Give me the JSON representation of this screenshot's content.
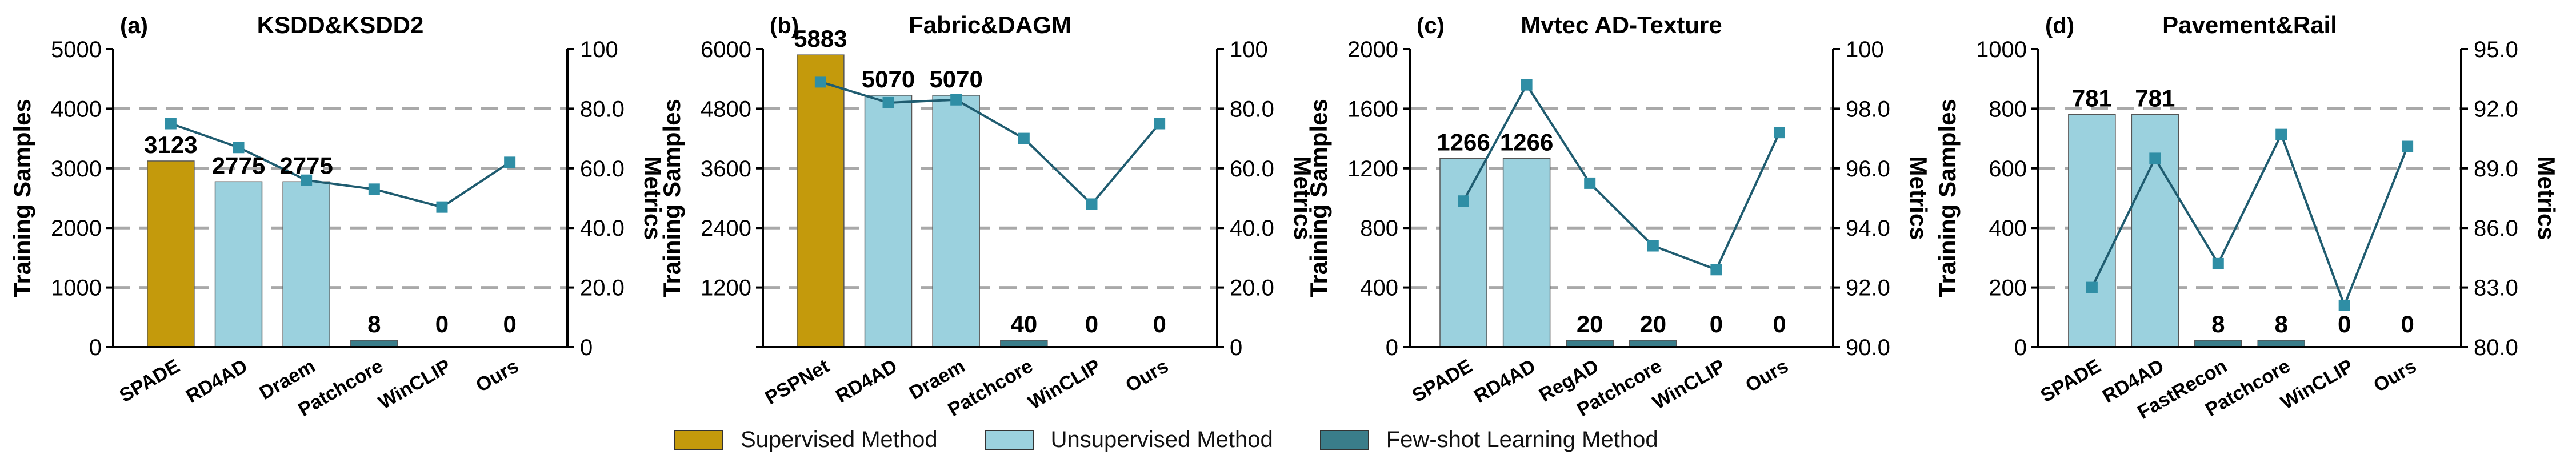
{
  "colors": {
    "supervised": "#C49A0C",
    "unsupervised": "#9BD1DE",
    "fewshot": "#3A7D8A",
    "line": "#1F5C70",
    "marker": "#2F8EA5",
    "grid": "#A9A9A9"
  },
  "legend": {
    "items": [
      {
        "label": "Supervised Method",
        "color_key": "supervised"
      },
      {
        "label": "Unsupervised Method",
        "color_key": "unsupervised"
      },
      {
        "label": "Few-shot Learning Method",
        "color_key": "fewshot"
      }
    ]
  },
  "chart_data": [
    {
      "type": "bar",
      "panel": "(a)",
      "title": "KSDD&KSDD2",
      "ylabel": "Training Samples",
      "y2label": "Metrics",
      "categories": [
        "SPADE",
        "RD4AD",
        "Draem",
        "Patchcore",
        "WinCLIP",
        "Ours"
      ],
      "values": [
        3123,
        2775,
        2775,
        8,
        0,
        0
      ],
      "value_labels": [
        "3123",
        "2775",
        "2775",
        "8",
        "0",
        "0"
      ],
      "method_type": [
        "supervised",
        "unsupervised",
        "unsupervised",
        "fewshot",
        "fewshot",
        "fewshot"
      ],
      "ylim": [
        0,
        5000
      ],
      "yticks": [
        "0",
        "1000",
        "2000",
        "3000",
        "4000",
        "5000"
      ],
      "y2lim": [
        0,
        100
      ],
      "y2ticks": [
        "0",
        "20.0",
        "40.0",
        "60.0",
        "80.0",
        "100"
      ],
      "metrics": [
        75,
        67,
        56,
        53,
        47,
        62
      ],
      "grid": "dashed"
    },
    {
      "type": "bar",
      "panel": "(b)",
      "title": "Fabric&DAGM",
      "ylabel": "Training Samples",
      "y2label": "Metrics",
      "categories": [
        "PSPNet",
        "RD4AD",
        "Draem",
        "Patchcore",
        "WinCLIP",
        "Ours"
      ],
      "values": [
        5883,
        5070,
        5070,
        40,
        0,
        0
      ],
      "value_labels": [
        "5883",
        "5070",
        "5070",
        "40",
        "0",
        "0"
      ],
      "method_type": [
        "supervised",
        "unsupervised",
        "unsupervised",
        "fewshot",
        "fewshot",
        "fewshot"
      ],
      "ylim": [
        0,
        6000
      ],
      "yticks": [
        "",
        "1200",
        "2400",
        "3600",
        "4800",
        "6000"
      ],
      "y2lim": [
        0,
        100
      ],
      "y2ticks": [
        "0",
        "20.0",
        "40.0",
        "60.0",
        "80.0",
        "100"
      ],
      "metrics": [
        89,
        82,
        83,
        70,
        48,
        75
      ],
      "grid": "dashed"
    },
    {
      "type": "bar",
      "panel": "(c)",
      "title": "Mvtec AD-Texture",
      "ylabel": "Training Samples",
      "y2label": "Metrics",
      "categories": [
        "SPADE",
        "RD4AD",
        "RegAD",
        "Patchcore",
        "WinCLIP",
        "Ours"
      ],
      "values": [
        1266,
        1266,
        20,
        20,
        0,
        0
      ],
      "value_labels": [
        "1266",
        "1266",
        "20",
        "20",
        "0",
        "0"
      ],
      "method_type": [
        "unsupervised",
        "unsupervised",
        "fewshot",
        "fewshot",
        "fewshot",
        "fewshot"
      ],
      "ylim": [
        0,
        2000
      ],
      "yticks": [
        "0",
        "400",
        "800",
        "1200",
        "1600",
        "2000"
      ],
      "y2lim": [
        90,
        100
      ],
      "y2ticks": [
        "90.0",
        "92.0",
        "94.0",
        "96.0",
        "98.0",
        "100"
      ],
      "metrics": [
        94.9,
        98.8,
        95.5,
        93.4,
        92.6,
        97.2
      ],
      "grid": "dashed"
    },
    {
      "type": "bar",
      "panel": "(d)",
      "title": "Pavement&Rail",
      "ylabel": "Training Samples",
      "y2label": "Metrics",
      "categories": [
        "SPADE",
        "RD4AD",
        "FastRecon",
        "Patchcore",
        "WinCLIP",
        "Ours"
      ],
      "values": [
        781,
        781,
        8,
        8,
        0,
        0
      ],
      "value_labels": [
        "781",
        "781",
        "8",
        "8",
        "0",
        "0"
      ],
      "method_type": [
        "unsupervised",
        "unsupervised",
        "fewshot",
        "fewshot",
        "fewshot",
        "fewshot"
      ],
      "ylim": [
        0,
        1000
      ],
      "yticks": [
        "0",
        "200",
        "400",
        "600",
        "800",
        "1000"
      ],
      "y2lim": [
        80,
        95
      ],
      "y2ticks": [
        "80.0",
        "83.0",
        "86.0",
        "89.0",
        "92.0",
        "95.0"
      ],
      "metrics": [
        83,
        89.5,
        84.2,
        90.7,
        82.1,
        90.1
      ],
      "grid": "dashed"
    }
  ]
}
